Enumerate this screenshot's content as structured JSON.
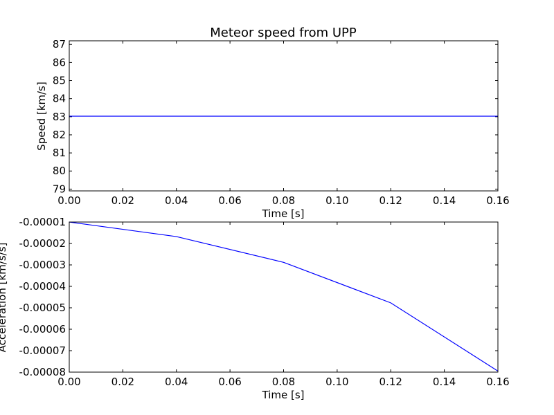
{
  "chart_data": [
    {
      "type": "line",
      "title": "Meteor speed from  UPP",
      "xlabel": "Time [s]",
      "ylabel": "Speed [km/s]",
      "xlim": [
        0.0,
        0.16
      ],
      "ylim": [
        78.9,
        87.2
      ],
      "xticks": [
        {
          "v": 0.0,
          "label": "0.00"
        },
        {
          "v": 0.02,
          "label": "0.02"
        },
        {
          "v": 0.04,
          "label": "0.04"
        },
        {
          "v": 0.06,
          "label": "0.06"
        },
        {
          "v": 0.08,
          "label": "0.08"
        },
        {
          "v": 0.1,
          "label": "0.10"
        },
        {
          "v": 0.12,
          "label": "0.12"
        },
        {
          "v": 0.14,
          "label": "0.14"
        },
        {
          "v": 0.16,
          "label": "0.16"
        }
      ],
      "yticks": [
        {
          "v": 79,
          "label": "79"
        },
        {
          "v": 80,
          "label": "80"
        },
        {
          "v": 81,
          "label": "81"
        },
        {
          "v": 82,
          "label": "82"
        },
        {
          "v": 83,
          "label": "83"
        },
        {
          "v": 84,
          "label": "84"
        },
        {
          "v": 85,
          "label": "85"
        },
        {
          "v": 86,
          "label": "86"
        },
        {
          "v": 87,
          "label": "87"
        }
      ],
      "grid": false,
      "series": [
        {
          "color": "#0000ff",
          "x": [
            0.0,
            0.04,
            0.08,
            0.12,
            0.16
          ],
          "y": [
            83.03,
            83.03,
            83.03,
            83.03,
            83.03
          ]
        }
      ]
    },
    {
      "type": "line",
      "title": "",
      "xlabel": "Time [s]",
      "ylabel": "Acceleration [km/s/s]",
      "xlim": [
        0.0,
        0.16
      ],
      "ylim": [
        -8e-05,
        -1e-05
      ],
      "xticks": [
        {
          "v": 0.0,
          "label": "0.00"
        },
        {
          "v": 0.02,
          "label": "0.02"
        },
        {
          "v": 0.04,
          "label": "0.04"
        },
        {
          "v": 0.06,
          "label": "0.06"
        },
        {
          "v": 0.08,
          "label": "0.08"
        },
        {
          "v": 0.1,
          "label": "0.10"
        },
        {
          "v": 0.12,
          "label": "0.12"
        },
        {
          "v": 0.14,
          "label": "0.14"
        },
        {
          "v": 0.16,
          "label": "0.16"
        }
      ],
      "yticks": [
        {
          "v": -8e-05,
          "label": "-0.00008"
        },
        {
          "v": -7e-05,
          "label": "-0.00007"
        },
        {
          "v": -6e-05,
          "label": "-0.00006"
        },
        {
          "v": -5e-05,
          "label": "-0.00005"
        },
        {
          "v": -4e-05,
          "label": "-0.00004"
        },
        {
          "v": -3e-05,
          "label": "-0.00003"
        },
        {
          "v": -2e-05,
          "label": "-0.00002"
        },
        {
          "v": -1e-05,
          "label": "-0.00001"
        }
      ],
      "grid": false,
      "series": [
        {
          "color": "#0000ff",
          "x": [
            0.0,
            0.04,
            0.08,
            0.12,
            0.16
          ],
          "y": [
            -1e-05,
            -1.68e-05,
            -2.88e-05,
            -4.77e-05,
            -7.95e-05
          ]
        }
      ]
    }
  ]
}
